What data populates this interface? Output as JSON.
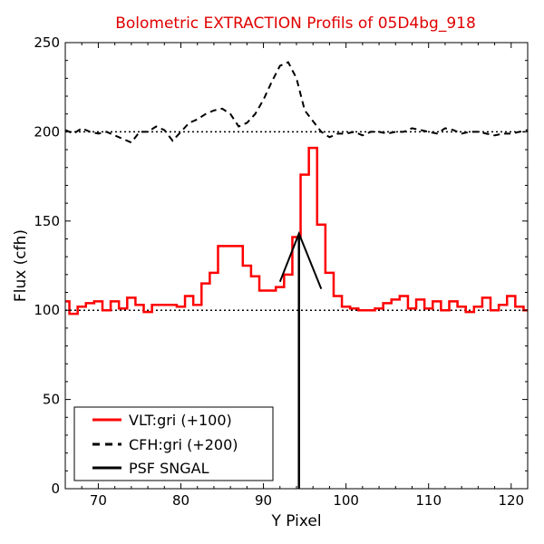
{
  "chart_data": {
    "type": "line",
    "title": "Bolometric EXTRACTION Profils of 05D4bg_918",
    "xlabel": "Y Pixel",
    "ylabel": "Flux (cfh)",
    "xlim": [
      66,
      122
    ],
    "ylim": [
      0,
      250
    ],
    "xticks": [
      70,
      80,
      90,
      100,
      110,
      120
    ],
    "yticks": [
      0,
      50,
      100,
      150,
      200,
      250
    ],
    "grid": false,
    "legend_position": "lower-left",
    "reference_lines": [
      100,
      200
    ],
    "series": [
      {
        "name": "VLT:gri (+100)",
        "style": "steps",
        "color": "#ff0000",
        "x": [
          66,
          67,
          68,
          69,
          70,
          71,
          72,
          73,
          74,
          75,
          76,
          77,
          78,
          79,
          80,
          81,
          82,
          83,
          84,
          85,
          86,
          87,
          88,
          89,
          90,
          91,
          92,
          93,
          94,
          95,
          96,
          97,
          98,
          99,
          100,
          101,
          102,
          103,
          104,
          105,
          106,
          107,
          108,
          109,
          110,
          111,
          112,
          113,
          114,
          115,
          116,
          117,
          118,
          119,
          120,
          121,
          122
        ],
        "y": [
          105,
          98,
          102,
          104,
          105,
          100,
          105,
          101,
          107,
          103,
          99,
          103,
          103,
          103,
          102,
          108,
          103,
          115,
          121,
          136,
          136,
          136,
          125,
          119,
          111,
          111,
          113,
          120,
          141,
          176,
          191,
          148,
          121,
          108,
          102,
          101,
          100,
          100,
          101,
          104,
          106,
          108,
          101,
          106,
          101,
          105,
          100,
          105,
          102,
          99,
          102,
          107,
          100,
          103,
          108,
          102,
          100
        ]
      },
      {
        "name": "CFH:gri (+200)",
        "style": "dashed",
        "color": "#000000",
        "x": [
          66,
          67,
          68,
          69,
          70,
          71,
          72,
          73,
          74,
          75,
          76,
          77,
          78,
          79,
          80,
          81,
          82,
          83,
          84,
          85,
          86,
          87,
          88,
          89,
          90,
          91,
          92,
          93,
          94,
          95,
          96,
          97,
          98,
          99,
          100,
          101,
          102,
          103,
          104,
          105,
          106,
          107,
          108,
          109,
          110,
          111,
          112,
          113,
          114,
          115,
          116,
          117,
          118,
          119,
          120,
          121,
          122
        ],
        "y": [
          201,
          199,
          202,
          200,
          199,
          200,
          198,
          196,
          194,
          200,
          200,
          203,
          201,
          195,
          200,
          205,
          207,
          210,
          212,
          213,
          210,
          203,
          205,
          210,
          218,
          228,
          237,
          239,
          230,
          212,
          206,
          200,
          197,
          199,
          199,
          200,
          198,
          200,
          200,
          199,
          200,
          200,
          202,
          201,
          200,
          199,
          202,
          201,
          199,
          200,
          200,
          199,
          198,
          199,
          199,
          200,
          201
        ]
      },
      {
        "name": "PSF SNGAL",
        "style": "solid",
        "color": "#000000",
        "x": [
          92,
          94.3,
          97
        ],
        "y": [
          116,
          143,
          112
        ],
        "vline_x": 94.3
      }
    ]
  }
}
